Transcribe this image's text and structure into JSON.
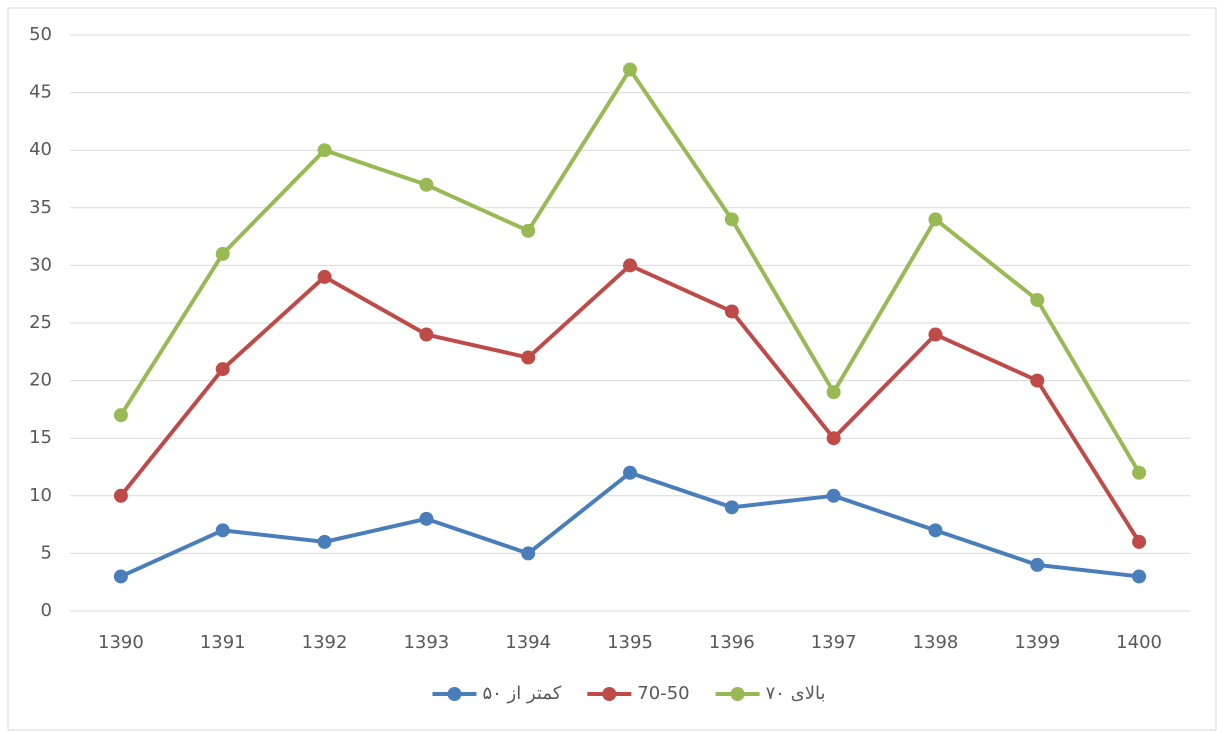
{
  "chart_data": {
    "type": "line",
    "categories": [
      "1390",
      "1391",
      "1392",
      "1393",
      "1394",
      "1395",
      "1396",
      "1397",
      "1398",
      "1399",
      "1400"
    ],
    "series": [
      {
        "name": "کمتر از ۵۰",
        "color": "#4a7ebb",
        "values": [
          3,
          7,
          6,
          8,
          5,
          12,
          9,
          10,
          7,
          4,
          3
        ]
      },
      {
        "name": "70-50",
        "color": "#be4b48",
        "values": [
          10,
          21,
          29,
          24,
          22,
          30,
          26,
          15,
          24,
          20,
          6
        ]
      },
      {
        "name": "بالای ۷۰",
        "color": "#98b954",
        "values": [
          17,
          31,
          40,
          37,
          33,
          47,
          34,
          19,
          34,
          27,
          12
        ]
      }
    ],
    "ylim": [
      0,
      50
    ],
    "yticks": [
      0,
      5,
      10,
      15,
      20,
      25,
      30,
      35,
      40,
      45,
      50
    ],
    "grid": true,
    "legend": "bottom"
  }
}
